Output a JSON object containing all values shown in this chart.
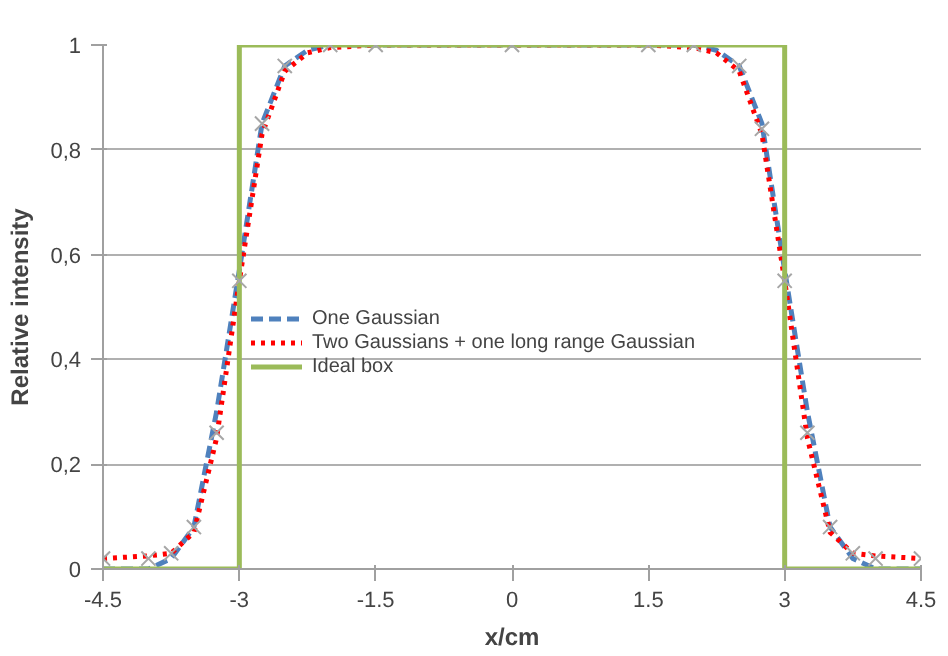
{
  "chart_data": {
    "type": "line",
    "xlabel": "x/cm",
    "ylabel": "Relative intensity",
    "xlim": [
      -4.5,
      4.5
    ],
    "ylim": [
      0,
      1
    ],
    "xticks": [
      -4.5,
      -3,
      -1.5,
      0,
      1.5,
      3,
      4.5
    ],
    "yticks": [
      0,
      {
        "value": 0.2,
        "label": "0,2"
      },
      {
        "value": 0.4,
        "label": "0,4"
      },
      {
        "value": 0.6,
        "label": "0,6"
      },
      {
        "value": 0.8,
        "label": "0,8"
      },
      1
    ],
    "grid": "y",
    "legend": "center",
    "series": [
      {
        "type": "scatter",
        "marker": "cross",
        "color": "#a6a6a6",
        "x": [
          -4.5,
          -4,
          -3.75,
          -3.5,
          -3.25,
          -3,
          -2.75,
          -2.5,
          -2,
          -1.5,
          0,
          1.5,
          2,
          2.5,
          2.75,
          3,
          3.25,
          3.5,
          3.75,
          4,
          4.5
        ],
        "values": [
          0.02,
          0.02,
          0.03,
          0.08,
          0.26,
          0.55,
          0.85,
          0.96,
          1,
          1,
          1,
          1,
          1,
          0.96,
          0.84,
          0.55,
          0.26,
          0.08,
          0.03,
          0.02,
          0.02
        ]
      },
      {
        "name": "One Gaussian",
        "line_style": "dashed",
        "color": "#4f81bd",
        "x": [
          -4.5,
          -4,
          -3.75,
          -3.5,
          -3.25,
          -3,
          -2.75,
          -2.5,
          -2.25,
          -2,
          2,
          2.25,
          2.5,
          2.75,
          3,
          3.25,
          3.5,
          3.75,
          4,
          4.5
        ],
        "values": [
          0,
          0,
          0.02,
          0.08,
          0.3,
          0.57,
          0.85,
          0.96,
          0.99,
          1,
          1,
          0.99,
          0.96,
          0.85,
          0.57,
          0.3,
          0.08,
          0.02,
          0,
          0
        ]
      },
      {
        "name": "Two Gaussians + one long range Gaussian",
        "line_style": "dotted",
        "color": "#ff0000",
        "x": [
          -4.5,
          -4,
          -3.75,
          -3.5,
          -3.25,
          -3,
          -2.75,
          -2.5,
          -2.25,
          -2,
          -1.5,
          1.5,
          2,
          2.25,
          2.5,
          2.75,
          3,
          3.25,
          3.5,
          3.75,
          4,
          4.5
        ],
        "values": [
          0.02,
          0.025,
          0.03,
          0.07,
          0.25,
          0.55,
          0.83,
          0.95,
          0.985,
          0.995,
          1,
          1,
          0.995,
          0.985,
          0.95,
          0.83,
          0.55,
          0.25,
          0.07,
          0.03,
          0.025,
          0.02
        ]
      },
      {
        "name": "Ideal box",
        "line_style": "solid",
        "color": "#9bbb59",
        "x": [
          -4.5,
          -3,
          -3,
          3,
          3,
          4.5
        ],
        "values": [
          0,
          0,
          1,
          1,
          0,
          0
        ]
      }
    ]
  }
}
